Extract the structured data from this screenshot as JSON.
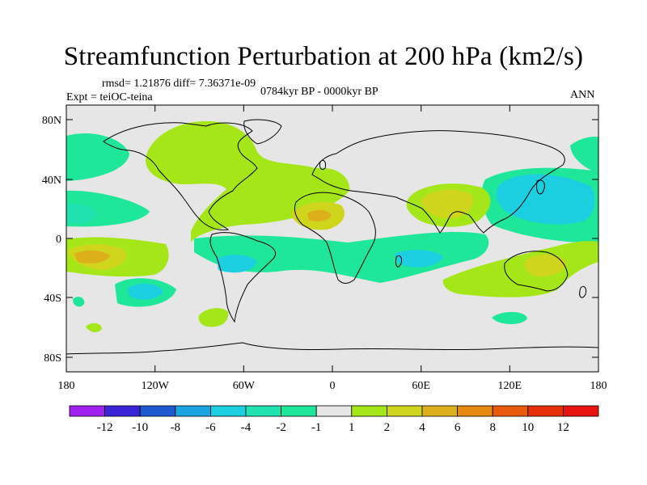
{
  "title": "Streamfunction Perturbation at 200 hPa (km2/s)",
  "stats": "rmsd= 1.21876 diff= 7.36371e-09",
  "experiment": "Expt = teiOC-teina",
  "period": "0784kyr BP - 0000kyr BP",
  "season": "ANN",
  "lat_labels": [
    "80N",
    "40N",
    "0",
    "40S",
    "80S"
  ],
  "lon_labels": [
    "180",
    "120W",
    "60W",
    "0",
    "60E",
    "120E",
    "180"
  ],
  "colorbar": {
    "labels": [
      "-12",
      "-10",
      "-8",
      "-6",
      "-4",
      "-2",
      "-1",
      "1",
      "2",
      "4",
      "6",
      "8",
      "10",
      "12"
    ],
    "colors": [
      "#a020f0",
      "#3b24d6",
      "#1f5ad0",
      "#1ba3e2",
      "#1ccfe0",
      "#21e3b0",
      "#1fe79a",
      "#e6e6e6",
      "#a5e619",
      "#cfd51a",
      "#dcb01a",
      "#e5890f",
      "#e85a0c",
      "#e6300a",
      "#e8140f"
    ]
  },
  "colors": {
    "neutral": "#e6e6e6",
    "neg1": "#1fe79a",
    "neg2": "#21e3b0",
    "neg3": "#1ccfe0",
    "pos1": "#a5e619",
    "pos2": "#cfd51a",
    "pos3": "#dcb01a"
  }
}
